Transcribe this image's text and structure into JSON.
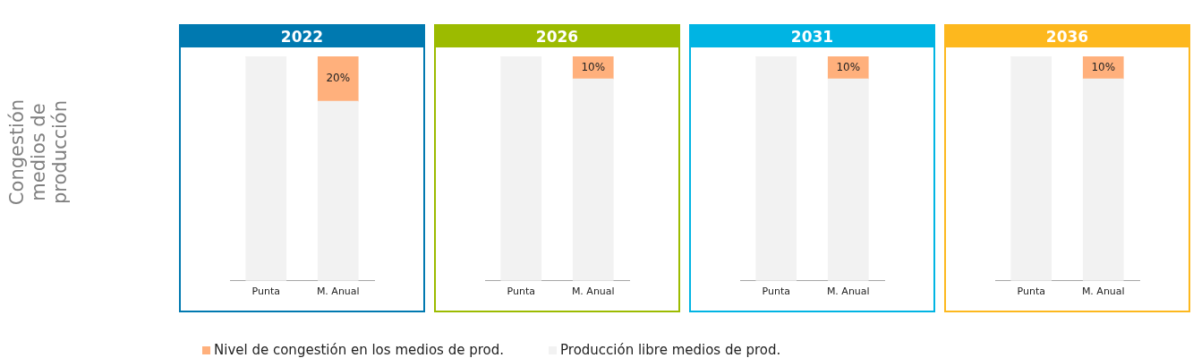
{
  "chart_data": [
    {
      "type": "bar",
      "title": "2022",
      "ylabel": "Congestión medios de producción",
      "categories": [
        "Punta",
        "M. Anual"
      ],
      "stacked": true,
      "tick_labels": "x",
      "legend": "bottom",
      "series": [
        {
          "name": "Producción libre medios de prod.",
          "color": "#f2f2f2",
          "values": [
            100,
            80
          ]
        },
        {
          "name": "Nivel de congestión en los medios de prod.",
          "color": "#ffb07c",
          "values": [
            0,
            20
          ],
          "value_labels": [
            null,
            "20%"
          ]
        }
      ]
    },
    {
      "type": "bar",
      "title": "2026",
      "categories": [
        "Punta",
        "M. Anual"
      ],
      "stacked": true,
      "tick_labels": "x",
      "series": [
        {
          "color": "#f2f2f2",
          "values": [
            100,
            90
          ]
        },
        {
          "color": "#ffb07c",
          "values": [
            0,
            10
          ],
          "value_labels": [
            null,
            "10%"
          ]
        }
      ]
    },
    {
      "type": "bar",
      "title": "2031",
      "categories": [
        "Punta",
        "M. Anual"
      ],
      "stacked": true,
      "tick_labels": "x",
      "series": [
        {
          "color": "#f2f2f2",
          "values": [
            100,
            90
          ]
        },
        {
          "color": "#ffb07c",
          "values": [
            0,
            10
          ],
          "value_labels": [
            null,
            "10%"
          ]
        }
      ]
    },
    {
      "type": "bar",
      "title": "2036",
      "categories": [
        "Punta",
        "M. Anual"
      ],
      "stacked": true,
      "tick_labels": "x",
      "series": [
        {
          "color": "#f2f2f2",
          "values": [
            100,
            90
          ]
        },
        {
          "color": "#ffb07c",
          "values": [
            0,
            10
          ],
          "value_labels": [
            null,
            "10%"
          ]
        }
      ]
    }
  ]
}
